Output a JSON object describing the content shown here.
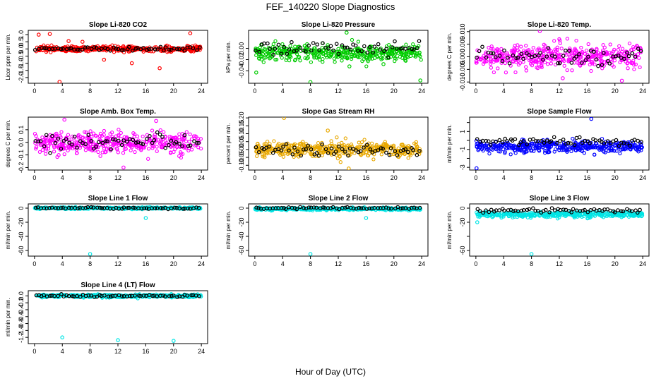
{
  "figure": {
    "title": "FEF_140220  Slope Diagnostics",
    "xlabel": "Hour of Day (UTC)"
  },
  "chart_data": [
    {
      "type": "scatter",
      "title": "Slope Li-820 CO2",
      "ylabel": "Licor ppm per min.",
      "ylim": [
        -2.4,
        1.3
      ],
      "yticks": [
        -2.0,
        -1.5,
        -1.0,
        -0.5,
        0.0,
        0.5,
        1.0
      ],
      "ytick_labels": [
        "-2.0",
        "-1.5",
        "-1.0",
        "-0.5",
        "0.0",
        "0.5",
        "1.0"
      ],
      "xlim": [
        -0.9,
        24.9
      ],
      "xticks": [
        0,
        4,
        8,
        12,
        16,
        20,
        24
      ],
      "xtick_labels": [
        "0",
        "4",
        "8",
        "12",
        "16",
        "20",
        "24"
      ],
      "color": "#ff0000",
      "base": 0.0,
      "spread": 0.17,
      "black_offset": 0.02,
      "outliers": [
        {
          "x": 0.6,
          "y": 1.0
        },
        {
          "x": 2.2,
          "y": 1.05
        },
        {
          "x": 3.6,
          "y": -2.3
        },
        {
          "x": 6.9,
          "y": 0.5
        },
        {
          "x": 14.0,
          "y": -1.0
        },
        {
          "x": 18.0,
          "y": -1.35
        },
        {
          "x": 22.4,
          "y": 1.1
        },
        {
          "x": 4.9,
          "y": 0.55
        },
        {
          "x": 10.0,
          "y": -0.75
        }
      ]
    },
    {
      "type": "scatter",
      "title": "Slope Li-820 Pressure",
      "ylabel": "kPa per min.",
      "ylim": [
        -0.062,
        0.032
      ],
      "yticks": [
        -0.04,
        -0.02,
        0.0
      ],
      "ytick_labels": [
        "-0.04",
        "-0.02",
        "0.00"
      ],
      "xlim": [
        -0.9,
        24.9
      ],
      "xticks": [
        0,
        4,
        8,
        12,
        16,
        20,
        24
      ],
      "xtick_labels": [
        "0",
        "4",
        "8",
        "12",
        "16",
        "20",
        "24"
      ],
      "color": "#00cc00",
      "base": -0.008,
      "spread": 0.013,
      "black_offset": 0.008,
      "outliers": [
        {
          "x": 0.2,
          "y": -0.043
        },
        {
          "x": 8.0,
          "y": -0.06
        },
        {
          "x": 13.2,
          "y": 0.028
        },
        {
          "x": 13.6,
          "y": -0.032
        },
        {
          "x": 23.8,
          "y": -0.057
        },
        {
          "x": 18.5,
          "y": -0.028
        }
      ]
    },
    {
      "type": "scatter",
      "title": "Slope Li-820 Temp.",
      "ylabel": "degrees C per min.",
      "ylim": [
        -0.0105,
        0.0105
      ],
      "yticks": [
        -0.01,
        -0.005,
        0.0,
        0.005,
        0.01
      ],
      "ytick_labels": [
        "-0.010",
        "-0.005",
        "0.000",
        "0.005",
        "0.010"
      ],
      "xlim": [
        -0.9,
        24.9
      ],
      "xticks": [
        0,
        4,
        8,
        12,
        16,
        20,
        24
      ],
      "xtick_labels": [
        "0",
        "4",
        "8",
        "12",
        "16",
        "20",
        "24"
      ],
      "color": "#ff00ff",
      "base": 0.0,
      "spread": 0.0045,
      "black_offset": 0.0,
      "outliers": [
        {
          "x": 9.2,
          "y": 0.0102
        },
        {
          "x": 12.5,
          "y": -0.0085
        },
        {
          "x": 21.0,
          "y": -0.0095
        }
      ]
    },
    {
      "type": "scatter",
      "title": "Slope Amb. Box Temp.",
      "ylabel": "degrees C per min.",
      "ylim": [
        -0.22,
        0.2
      ],
      "yticks": [
        -0.2,
        -0.1,
        0.0,
        0.1
      ],
      "ytick_labels": [
        "-0.2",
        "-0.1",
        "0.0",
        "0.1"
      ],
      "xlim": [
        -0.9,
        24.9
      ],
      "xticks": [
        0,
        4,
        8,
        12,
        16,
        20,
        24
      ],
      "xtick_labels": [
        "0",
        "4",
        "8",
        "12",
        "16",
        "20",
        "24"
      ],
      "color": "#ff00ff",
      "base": 0.0,
      "spread": 0.075,
      "black_offset": 0.0,
      "outliers": [
        {
          "x": 4.3,
          "y": 0.18
        },
        {
          "x": 12.8,
          "y": -0.2
        },
        {
          "x": 17.5,
          "y": 0.17
        }
      ]
    },
    {
      "type": "scatter",
      "title": "Slope Gas Stream RH",
      "ylabel": "percent per min.",
      "ylim": [
        -0.13,
        0.205
      ],
      "yticks": [
        -0.1,
        -0.05,
        0.0,
        0.05,
        0.1,
        0.15,
        0.2
      ],
      "ytick_labels": [
        "-0.10",
        "-0.05",
        "0.00",
        "0.05",
        "0.10",
        "0.15",
        "0.20"
      ],
      "xlim": [
        -0.9,
        24.9
      ],
      "xticks": [
        0,
        4,
        8,
        12,
        16,
        20,
        24
      ],
      "xtick_labels": [
        "0",
        "4",
        "8",
        "12",
        "16",
        "20",
        "24"
      ],
      "color": "#e8a800",
      "base": 0.0,
      "spread": 0.045,
      "black_offset": 0.0,
      "outliers": [
        {
          "x": 4.2,
          "y": 0.2
        },
        {
          "x": 13.5,
          "y": -0.12
        },
        {
          "x": 10.5,
          "y": 0.12
        }
      ]
    },
    {
      "type": "scatter",
      "title": "Slope Sample Flow",
      "ylabel": "ml/min per min.",
      "ylim": [
        -3.3,
        2.6
      ],
      "yticks": [
        -3,
        -2,
        -1,
        0,
        1,
        2
      ],
      "ytick_labels": [
        "-3",
        "",
        "-1",
        "",
        "1",
        ""
      ],
      "xlim": [
        -0.9,
        24.9
      ],
      "xticks": [
        0,
        4,
        8,
        12,
        16,
        20,
        24
      ],
      "xtick_labels": [
        "0",
        "4",
        "8",
        "12",
        "16",
        "20",
        "24"
      ],
      "color": "#0000ff",
      "base": -0.7,
      "spread": 0.55,
      "black_offset": 0.6,
      "outliers": [
        {
          "x": 0.1,
          "y": -3.1
        },
        {
          "x": 16.6,
          "y": 2.4
        }
      ]
    },
    {
      "type": "scatter",
      "title": "Slope Line 1 Flow",
      "ylabel": "ml/min per min.",
      "ylim": [
        -68,
        6
      ],
      "yticks": [
        -60,
        -40,
        -20,
        0
      ],
      "ytick_labels": [
        "-60",
        "-40",
        "-20",
        "0"
      ],
      "xlim": [
        -0.9,
        24.9
      ],
      "xticks": [
        0,
        4,
        8,
        12,
        16,
        20,
        24
      ],
      "xtick_labels": [
        "0",
        "4",
        "8",
        "12",
        "16",
        "20",
        "24"
      ],
      "color": "#00e5e5",
      "base": 0.0,
      "spread": 1.2,
      "black_offset": 0.0,
      "outliers": [
        {
          "x": 8.0,
          "y": -65
        },
        {
          "x": 16.0,
          "y": -14
        }
      ]
    },
    {
      "type": "scatter",
      "title": "Slope Line 2 Flow",
      "ylabel": "ml/min per min.",
      "ylim": [
        -68,
        6
      ],
      "yticks": [
        -60,
        -40,
        -20,
        0
      ],
      "ytick_labels": [
        "-60",
        "-40",
        "-20",
        "0"
      ],
      "xlim": [
        -0.9,
        24.9
      ],
      "xticks": [
        0,
        4,
        8,
        12,
        16,
        20,
        24
      ],
      "xtick_labels": [
        "0",
        "4",
        "8",
        "12",
        "16",
        "20",
        "24"
      ],
      "color": "#00e5e5",
      "base": -1.0,
      "spread": 1.6,
      "black_offset": 1.0,
      "outliers": [
        {
          "x": 8.0,
          "y": -65
        },
        {
          "x": 16.0,
          "y": -14
        }
      ]
    },
    {
      "type": "scatter",
      "title": "Slope Line 3 Flow",
      "ylabel": "ml/min per min.",
      "ylim": [
        -68,
        6
      ],
      "yticks": [
        -60,
        -40,
        -20,
        0
      ],
      "ytick_labels": [
        "-60",
        "",
        "-20",
        "0"
      ],
      "xlim": [
        -0.9,
        24.9
      ],
      "xticks": [
        0,
        4,
        8,
        12,
        16,
        20,
        24
      ],
      "xtick_labels": [
        "0",
        "4",
        "8",
        "12",
        "16",
        "20",
        "24"
      ],
      "color": "#00e5e5",
      "base": -9.0,
      "spread": 3.5,
      "black_offset": 6.0,
      "outliers": [
        {
          "x": 8.0,
          "y": -65
        },
        {
          "x": 0.2,
          "y": -20
        }
      ]
    },
    {
      "type": "scatter",
      "title": "Slope Line 4 (LT) Flow",
      "ylabel": "ml/min per min.",
      "ylim": [
        -1.38,
        0.15
      ],
      "yticks": [
        -1.2,
        -1.0,
        -0.8,
        -0.6,
        -0.4,
        -0.2,
        0.0
      ],
      "ytick_labels": [
        "-1.2",
        "-1.0",
        "-0.8",
        "-0.6",
        "-0.4",
        "-0.2",
        "0.0"
      ],
      "xlim": [
        -0.9,
        24.9
      ],
      "xticks": [
        0,
        4,
        8,
        12,
        16,
        20,
        24
      ],
      "xtick_labels": [
        "0",
        "4",
        "8",
        "12",
        "16",
        "20",
        "24"
      ],
      "color": "#00e5e5",
      "base": 0.0,
      "spread": 0.04,
      "black_offset": 0.0,
      "outliers": [
        {
          "x": 4.0,
          "y": -1.2
        },
        {
          "x": 12.0,
          "y": -1.28
        },
        {
          "x": 20.0,
          "y": -1.3
        }
      ]
    }
  ]
}
